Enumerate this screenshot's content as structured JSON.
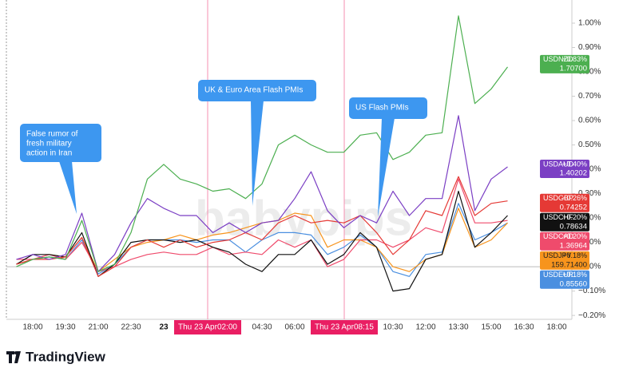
{
  "chart_data": {
    "type": "line",
    "watermark": "babypips",
    "footer": "TradingView",
    "categories": [
      null,
      "18:00",
      null,
      "19:30",
      null,
      "21:00",
      null,
      "22:30",
      null,
      "23",
      null,
      null,
      null,
      null,
      null,
      "04:30",
      null,
      "06:00",
      null,
      null,
      null,
      null,
      null,
      "10:30",
      null,
      "12:00",
      null,
      "13:30",
      null,
      "15:00",
      null,
      "16:30",
      null,
      "18:00"
    ],
    "ylim": [
      -0.216,
      1.095
    ],
    "yticks": [
      {
        "value": -0.2,
        "label": "−0.20%"
      },
      {
        "value": -0.1,
        "label": "−0.10%"
      },
      {
        "value": 0,
        "label": "0.00%"
      },
      {
        "value": 0.1,
        "label": "0.10%"
      },
      {
        "value": 0.2,
        "label": "0.20%"
      },
      {
        "value": 0.3,
        "label": "0.30%"
      },
      {
        "value": 0.4,
        "label": "0.40%"
      },
      {
        "value": 0.5,
        "label": "0.50%"
      },
      {
        "value": 0.6,
        "label": "0.60%"
      },
      {
        "value": 0.7,
        "label": "0.70%"
      },
      {
        "value": 0.8,
        "label": "0.80%"
      },
      {
        "value": 0.9,
        "label": "0.90%"
      },
      {
        "value": 1.0,
        "label": "1.00%"
      }
    ],
    "time_markers": [
      {
        "date": "Thu 23 Apr",
        "time": "02:00"
      },
      {
        "date": "Thu 23 Apr",
        "time": "08:15"
      }
    ],
    "annotations": [
      {
        "lines": [
          "False rumor of",
          "fresh military",
          "action in Iran"
        ]
      },
      {
        "lines": [
          "UK & Euro Area Flash PMIs"
        ]
      },
      {
        "lines": [
          "US Flash PMIs"
        ]
      }
    ],
    "series": [
      {
        "name": "USDNZD",
        "color": "#4caf50",
        "change": {
          "value": 0.83,
          "label": "+0.83%"
        },
        "price": {
          "value": 1.707,
          "label": "1.70700"
        },
        "values": [
          0.0,
          0.03,
          0.04,
          0.03,
          0.19,
          -0.02,
          0.01,
          0.14,
          0.36,
          0.42,
          0.36,
          0.34,
          0.31,
          0.32,
          0.28,
          0.34,
          0.5,
          0.54,
          0.5,
          0.47,
          0.47,
          0.54,
          0.55,
          0.44,
          0.47,
          0.54,
          0.55,
          1.03,
          0.67,
          0.73,
          0.82,
          null,
          null,
          null
        ]
      },
      {
        "name": "USDAUD",
        "color": "#7b3fc4",
        "change": {
          "value": 0.4,
          "label": "+0.40%"
        },
        "price": {
          "value": 1.40202,
          "label": "1.40202"
        },
        "values": [
          0.03,
          0.05,
          0.03,
          0.05,
          0.22,
          -0.02,
          0.05,
          0.18,
          0.28,
          0.24,
          0.21,
          0.21,
          0.14,
          0.18,
          0.14,
          0.18,
          0.19,
          0.28,
          0.39,
          0.23,
          0.16,
          0.21,
          0.18,
          0.31,
          0.21,
          0.28,
          0.28,
          0.62,
          0.23,
          0.36,
          0.41,
          null,
          null,
          null
        ]
      },
      {
        "name": "USDGBP",
        "color": "#e53935",
        "change": {
          "value": 0.26,
          "label": "+0.26%"
        },
        "price": {
          "value": 0.74252,
          "label": "0.74252"
        },
        "values": [
          0.01,
          0.03,
          0.03,
          0.04,
          0.12,
          -0.04,
          0.0,
          0.08,
          0.11,
          0.08,
          0.11,
          0.08,
          0.1,
          0.11,
          0.14,
          0.11,
          0.18,
          0.21,
          0.18,
          0.19,
          0.18,
          0.21,
          0.14,
          0.05,
          0.11,
          0.23,
          0.21,
          0.37,
          0.21,
          0.26,
          0.27,
          null,
          null,
          null
        ]
      },
      {
        "name": "USDCHF",
        "color": "#111111",
        "change": {
          "value": 0.2,
          "label": "+0.20%"
        },
        "price": {
          "value": 0.78634,
          "label": "0.78634"
        },
        "values": [
          0.01,
          0.05,
          0.05,
          0.04,
          0.14,
          -0.04,
          0.01,
          0.1,
          0.11,
          0.11,
          0.1,
          0.11,
          0.08,
          0.06,
          0.01,
          -0.02,
          0.05,
          0.05,
          0.11,
          0.01,
          0.05,
          0.14,
          0.08,
          -0.1,
          -0.09,
          0.03,
          0.05,
          0.31,
          0.08,
          0.14,
          0.21,
          null,
          null,
          null
        ]
      },
      {
        "name": "USDCAD",
        "color": "#ef4b6c",
        "change": {
          "value": 0.2,
          "label": "+0.20%"
        },
        "price": {
          "value": 1.36964,
          "label": "1.36964"
        },
        "values": [
          0.03,
          0.03,
          0.05,
          0.03,
          0.1,
          -0.02,
          0.0,
          0.03,
          0.05,
          0.06,
          0.05,
          0.05,
          0.08,
          0.05,
          0.06,
          0.05,
          0.11,
          0.08,
          0.11,
          0.0,
          0.03,
          0.11,
          0.11,
          0.08,
          0.11,
          0.16,
          0.14,
          0.36,
          0.18,
          0.18,
          0.19,
          null,
          null,
          null
        ]
      },
      {
        "name": "USDJPY",
        "color": "#f7941d",
        "change": {
          "value": 0.18,
          "label": "+0.18%"
        },
        "price": {
          "value": 159.714,
          "label": "159.71400"
        },
        "values": [
          0.01,
          0.03,
          0.05,
          0.04,
          0.12,
          -0.02,
          0.03,
          0.08,
          0.1,
          0.11,
          0.13,
          0.11,
          0.13,
          0.14,
          0.16,
          0.18,
          0.19,
          0.22,
          0.21,
          0.08,
          0.11,
          0.11,
          0.08,
          0.0,
          -0.02,
          0.03,
          0.05,
          0.24,
          0.08,
          0.11,
          0.18,
          null,
          null,
          null
        ]
      },
      {
        "name": "USDEUR",
        "color": "#4a8fe0",
        "change": {
          "value": 0.18,
          "label": "+0.18%"
        },
        "price": {
          "value": 0.8556,
          "label": "0.85560"
        },
        "values": [
          0.01,
          0.03,
          0.04,
          0.03,
          0.11,
          -0.03,
          0.01,
          0.08,
          0.11,
          0.11,
          0.11,
          0.1,
          0.11,
          0.11,
          0.06,
          0.11,
          0.14,
          0.14,
          0.13,
          0.05,
          0.08,
          0.13,
          0.08,
          -0.02,
          -0.04,
          0.05,
          0.06,
          0.26,
          0.11,
          0.14,
          0.18,
          null,
          null,
          null
        ]
      }
    ]
  }
}
